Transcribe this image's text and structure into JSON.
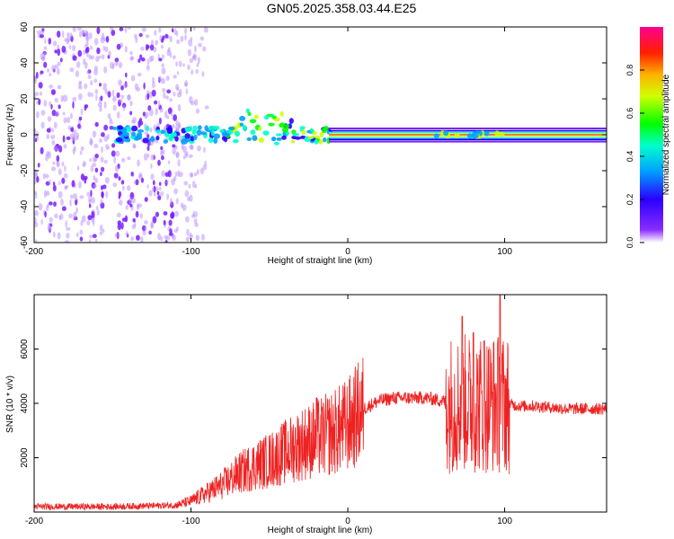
{
  "title": "GN05.2025.358.03.44.E25",
  "chart_data": [
    {
      "type": "heatmap",
      "xlabel": "Height of straight line (km)",
      "ylabel": "Frequency (Hz)",
      "xlim": [
        -200,
        165
      ],
      "ylim": [
        -60,
        60
      ],
      "xticks": [
        -200,
        -100,
        0,
        100
      ],
      "yticks": [
        -60,
        -40,
        -20,
        0,
        20,
        40,
        60
      ],
      "description_band": "bright continuous carrier band near 0 Hz from about -10 km to 165 km; scattered noise for heights below about -90 km",
      "colorbar": {
        "label": "Normalized spectral amplitude",
        "range": [
          0.0,
          1.0
        ],
        "ticks": [
          0.0,
          0.2,
          0.4,
          0.6,
          0.8
        ],
        "tick_labels": [
          "0.0",
          "0.2",
          "0.4",
          "0.6",
          "0.8"
        ],
        "colors": [
          "#ffffff",
          "#6a00ff",
          "#0000ff",
          "#00ffff",
          "#00ff00",
          "#ffff00",
          "#ff8000",
          "#ff0000",
          "#ff0080"
        ]
      }
    },
    {
      "type": "line",
      "xlabel": "Height of straight line (km)",
      "ylabel": "SNR (10 * v/v)",
      "xlim": [
        -200,
        165
      ],
      "ylim": [
        0,
        8000
      ],
      "xticks": [
        -200,
        -100,
        0,
        100
      ],
      "yticks": [
        2000,
        4000,
        6000
      ],
      "color": "#ee2222",
      "envelope": {
        "x": [
          -200,
          -150,
          -110,
          -100,
          -90,
          -80,
          -70,
          -60,
          -50,
          -40,
          -30,
          -20,
          -10,
          0,
          10,
          20,
          30,
          40,
          50,
          60,
          65,
          70,
          80,
          90,
          100,
          110,
          120,
          140,
          165
        ],
        "y": [
          200,
          200,
          250,
          400,
          700,
          1000,
          1400,
          1700,
          1900,
          2200,
          2500,
          2700,
          2900,
          3200,
          3800,
          4100,
          4200,
          4200,
          4200,
          4100,
          4000,
          4000,
          4000,
          4000,
          4000,
          3900,
          3900,
          3800,
          3800
        ]
      },
      "peaks": [
        {
          "x": 73,
          "y": 7200
        },
        {
          "x": 80,
          "y": 6600
        },
        {
          "x": 87,
          "y": 6300
        },
        {
          "x": 97,
          "y": 8000
        },
        {
          "x": -20,
          "y": 4200
        }
      ]
    }
  ]
}
